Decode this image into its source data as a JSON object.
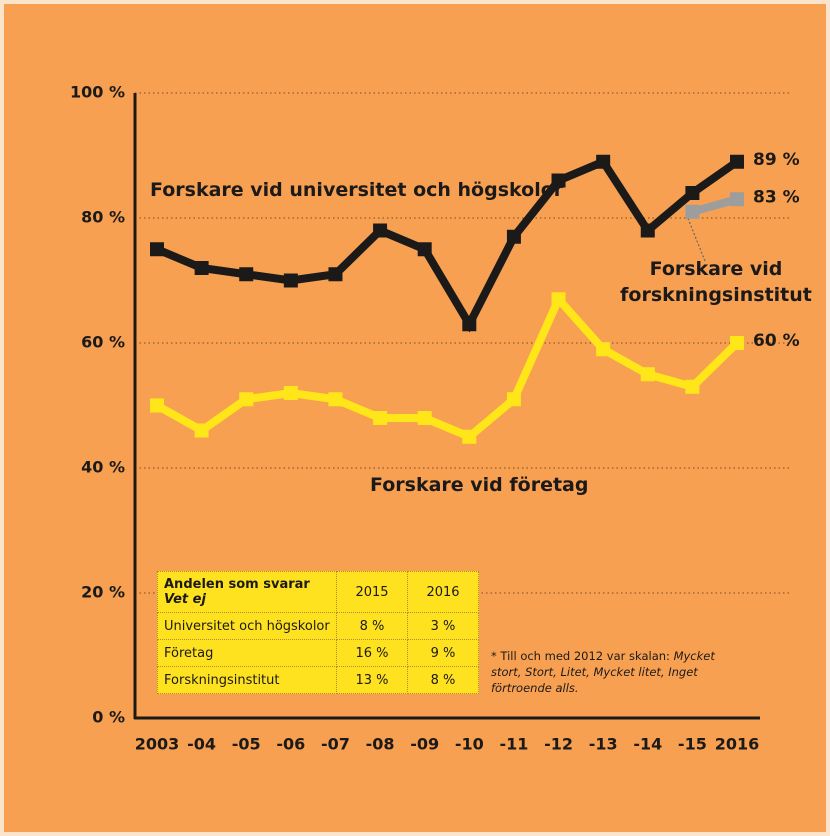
{
  "chart_data": {
    "type": "line",
    "categories": [
      "2003",
      "-04",
      "-05",
      "-06",
      "-07",
      "-08",
      "-09",
      "-10",
      "-11",
      "-12",
      "-13",
      "-14",
      "-15",
      "2016"
    ],
    "series": [
      {
        "name": "Forskare vid universitet och högskolor",
        "color": "#1c1a18",
        "values": [
          75,
          72,
          71,
          70,
          71,
          78,
          75,
          63,
          77,
          86,
          89,
          78,
          84,
          89
        ],
        "value_labels": [
          null,
          null,
          null,
          null,
          null,
          null,
          null,
          null,
          null,
          null,
          null,
          null,
          null,
          "89 %"
        ]
      },
      {
        "name": "Forskare vid företag",
        "color": "#ffe619",
        "values": [
          50,
          46,
          51,
          52,
          51,
          48,
          48,
          45,
          51,
          67,
          59,
          55,
          53,
          60
        ],
        "value_labels": [
          null,
          null,
          null,
          null,
          null,
          null,
          null,
          null,
          null,
          null,
          null,
          null,
          null,
          "60 %"
        ]
      },
      {
        "name": "Forskare vid forskningsinstitut",
        "color": "#9d9d9d",
        "values": [
          null,
          null,
          null,
          null,
          null,
          null,
          null,
          null,
          null,
          null,
          null,
          null,
          81,
          83
        ],
        "value_labels": [
          null,
          null,
          null,
          null,
          null,
          null,
          null,
          null,
          null,
          null,
          null,
          null,
          null,
          "83 %"
        ]
      }
    ],
    "ylim": [
      0,
      100
    ],
    "yticks": [
      {
        "value": 0,
        "label": "0 %"
      },
      {
        "value": 20,
        "label": "20 %"
      },
      {
        "value": 40,
        "label": "40 %"
      },
      {
        "value": 60,
        "label": "60 %"
      },
      {
        "value": 80,
        "label": "80 %"
      },
      {
        "value": 100,
        "label": "100 %"
      }
    ],
    "grid": true,
    "table": {
      "header_title": "Andelen som svarar",
      "header_subtitle": "Vet ej",
      "columns": [
        "2015",
        "2016"
      ],
      "rows": [
        [
          "Universitet och högskolor",
          "8 %",
          "3 %"
        ],
        [
          "Företag",
          "16 %",
          "9 %"
        ],
        [
          "Forskningsinstitut",
          "13 %",
          "8 %"
        ]
      ]
    },
    "footnote": "* Till och med 2012 var skalan:",
    "footnote_italic": "Mycket stort, Stort, Litet, Mycket litet, Inget förtroende alls."
  }
}
